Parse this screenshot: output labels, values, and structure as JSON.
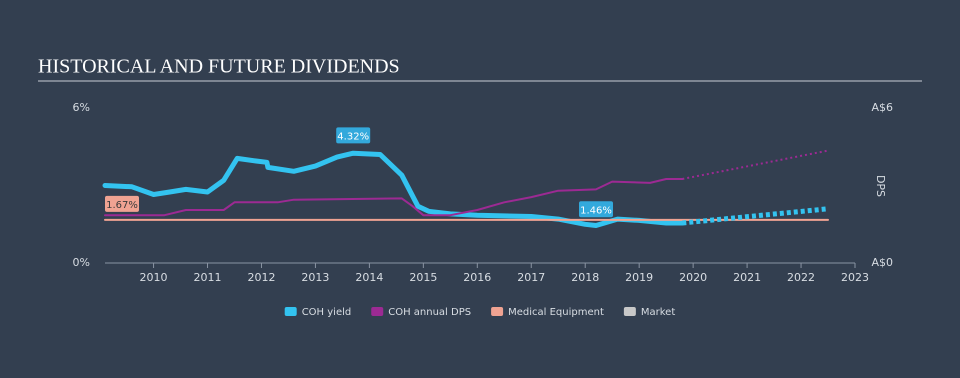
{
  "chart_data": {
    "type": "line",
    "title": "HISTORICAL AND FUTURE DIVIDENDS",
    "y2_label": "DPS",
    "xlim": [
      2009.1,
      2023
    ],
    "xticks": [
      2010,
      2011,
      2012,
      2013,
      2014,
      2015,
      2016,
      2017,
      2018,
      2019,
      2020,
      2021,
      2022,
      2023
    ],
    "ylim": [
      0,
      6
    ],
    "yticks": [
      {
        "value": 0,
        "label": "0%"
      },
      {
        "value": 6,
        "label": "6%"
      }
    ],
    "y2lim": [
      0,
      6
    ],
    "y2ticks": [
      {
        "value": 0,
        "label": "A$0"
      },
      {
        "value": 6,
        "label": "A$6"
      }
    ],
    "series": [
      {
        "name": "COH yield",
        "color": "#33c3f0",
        "width": 5,
        "style": "solid",
        "x": [
          2009.1,
          2009.6,
          2010.0,
          2010.3,
          2010.6,
          2011.0,
          2011.3,
          2011.55,
          2011.9,
          2012.1,
          2012.12,
          2012.6,
          2013.0,
          2013.4,
          2013.7,
          2014.2,
          2014.6,
          2014.9,
          2015.1,
          2015.5,
          2016.0,
          2017.0,
          2017.5,
          2018.0,
          2018.2,
          2018.6,
          2019.0,
          2019.5,
          2019.8
        ],
        "values": [
          3.0,
          2.95,
          2.65,
          2.75,
          2.85,
          2.75,
          3.2,
          4.05,
          3.95,
          3.9,
          3.7,
          3.55,
          3.75,
          4.1,
          4.25,
          4.2,
          3.4,
          2.2,
          2.0,
          1.9,
          1.85,
          1.8,
          1.7,
          1.5,
          1.45,
          1.7,
          1.65,
          1.55,
          1.55
        ]
      },
      {
        "name": "COH annual DPS",
        "color": "#9c2a93",
        "width": 2,
        "style": "solid",
        "axis": "y2",
        "x": [
          2009.1,
          2010.2,
          2010.6,
          2011.3,
          2011.5,
          2012.3,
          2012.6,
          2014.6,
          2014.8,
          2015.0,
          2015.5,
          2016.0,
          2016.5,
          2017.0,
          2017.5,
          2018.2,
          2018.5,
          2019.2,
          2019.5,
          2019.8
        ],
        "values": [
          1.85,
          1.85,
          2.05,
          2.05,
          2.35,
          2.35,
          2.45,
          2.5,
          2.2,
          1.85,
          1.85,
          2.05,
          2.35,
          2.55,
          2.8,
          2.85,
          3.15,
          3.1,
          3.25,
          3.25
        ]
      },
      {
        "name": "Medical Equipment",
        "color": "#f0a392",
        "width": 2,
        "style": "solid",
        "x": [
          2009.1,
          2022.5
        ],
        "values": [
          1.67,
          1.67
        ]
      },
      {
        "name": "Market",
        "color": "#c8c8c8",
        "width": 2,
        "style": "solid",
        "x": [],
        "values": []
      },
      {
        "color": "#33c3f0",
        "width": 5,
        "style": "dotted",
        "x": [
          2019.8,
          2022.5
        ],
        "values": [
          1.55,
          2.1
        ]
      },
      {
        "color": "#9c2a93",
        "width": 2,
        "style": "dotted",
        "axis": "y2",
        "x": [
          2019.8,
          2022.5
        ],
        "values": [
          3.25,
          4.35
        ]
      }
    ],
    "annotations": [
      {
        "text": "4.32%",
        "x": 2013.7,
        "y": 4.32,
        "color": "#33a9dc"
      },
      {
        "text": "1.46%",
        "x": 2018.2,
        "y": 1.46,
        "color": "#33a9dc"
      },
      {
        "text": "1.67%",
        "x": 2009.4,
        "y": 1.67,
        "color": "#f0a392"
      }
    ]
  }
}
